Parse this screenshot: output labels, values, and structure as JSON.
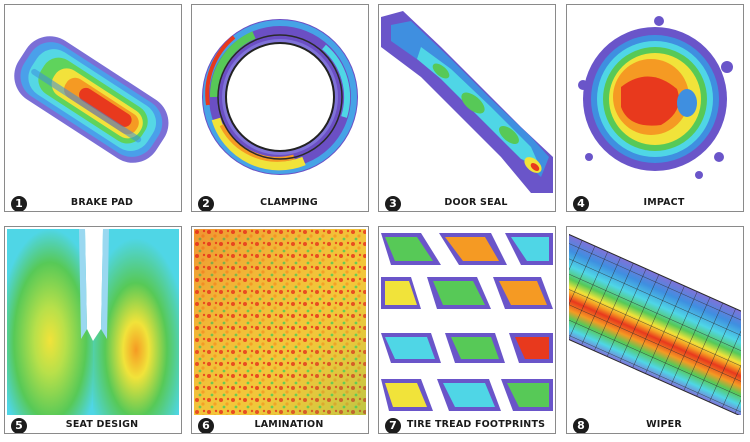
{
  "panels": [
    {
      "number": "1",
      "label": "BRAKE PAD",
      "icon": "brake-pad-pressure-map"
    },
    {
      "number": "2",
      "label": "CLAMPING",
      "icon": "clamping-ring-pressure-map"
    },
    {
      "number": "3",
      "label": "DOOR SEAL",
      "icon": "door-seal-pressure-map"
    },
    {
      "number": "4",
      "label": "IMPACT",
      "icon": "impact-pressure-map"
    },
    {
      "number": "5",
      "label": "SEAT DESIGN",
      "icon": "seat-pressure-map"
    },
    {
      "number": "6",
      "label": "LAMINATION",
      "icon": "lamination-pressure-map"
    },
    {
      "number": "7",
      "label": "TIRE TREAD FOOTPRINTS",
      "icon": "tire-tread-pressure-map"
    },
    {
      "number": "8",
      "label": "WIPER",
      "icon": "wiper-pressure-map"
    }
  ],
  "colors": {
    "purple": "#6a55c9",
    "blue": "#3f8fe0",
    "cyan": "#4fd6e6",
    "green": "#57c957",
    "yellow": "#f1e33a",
    "orange": "#f59a23",
    "red": "#e8391d"
  }
}
